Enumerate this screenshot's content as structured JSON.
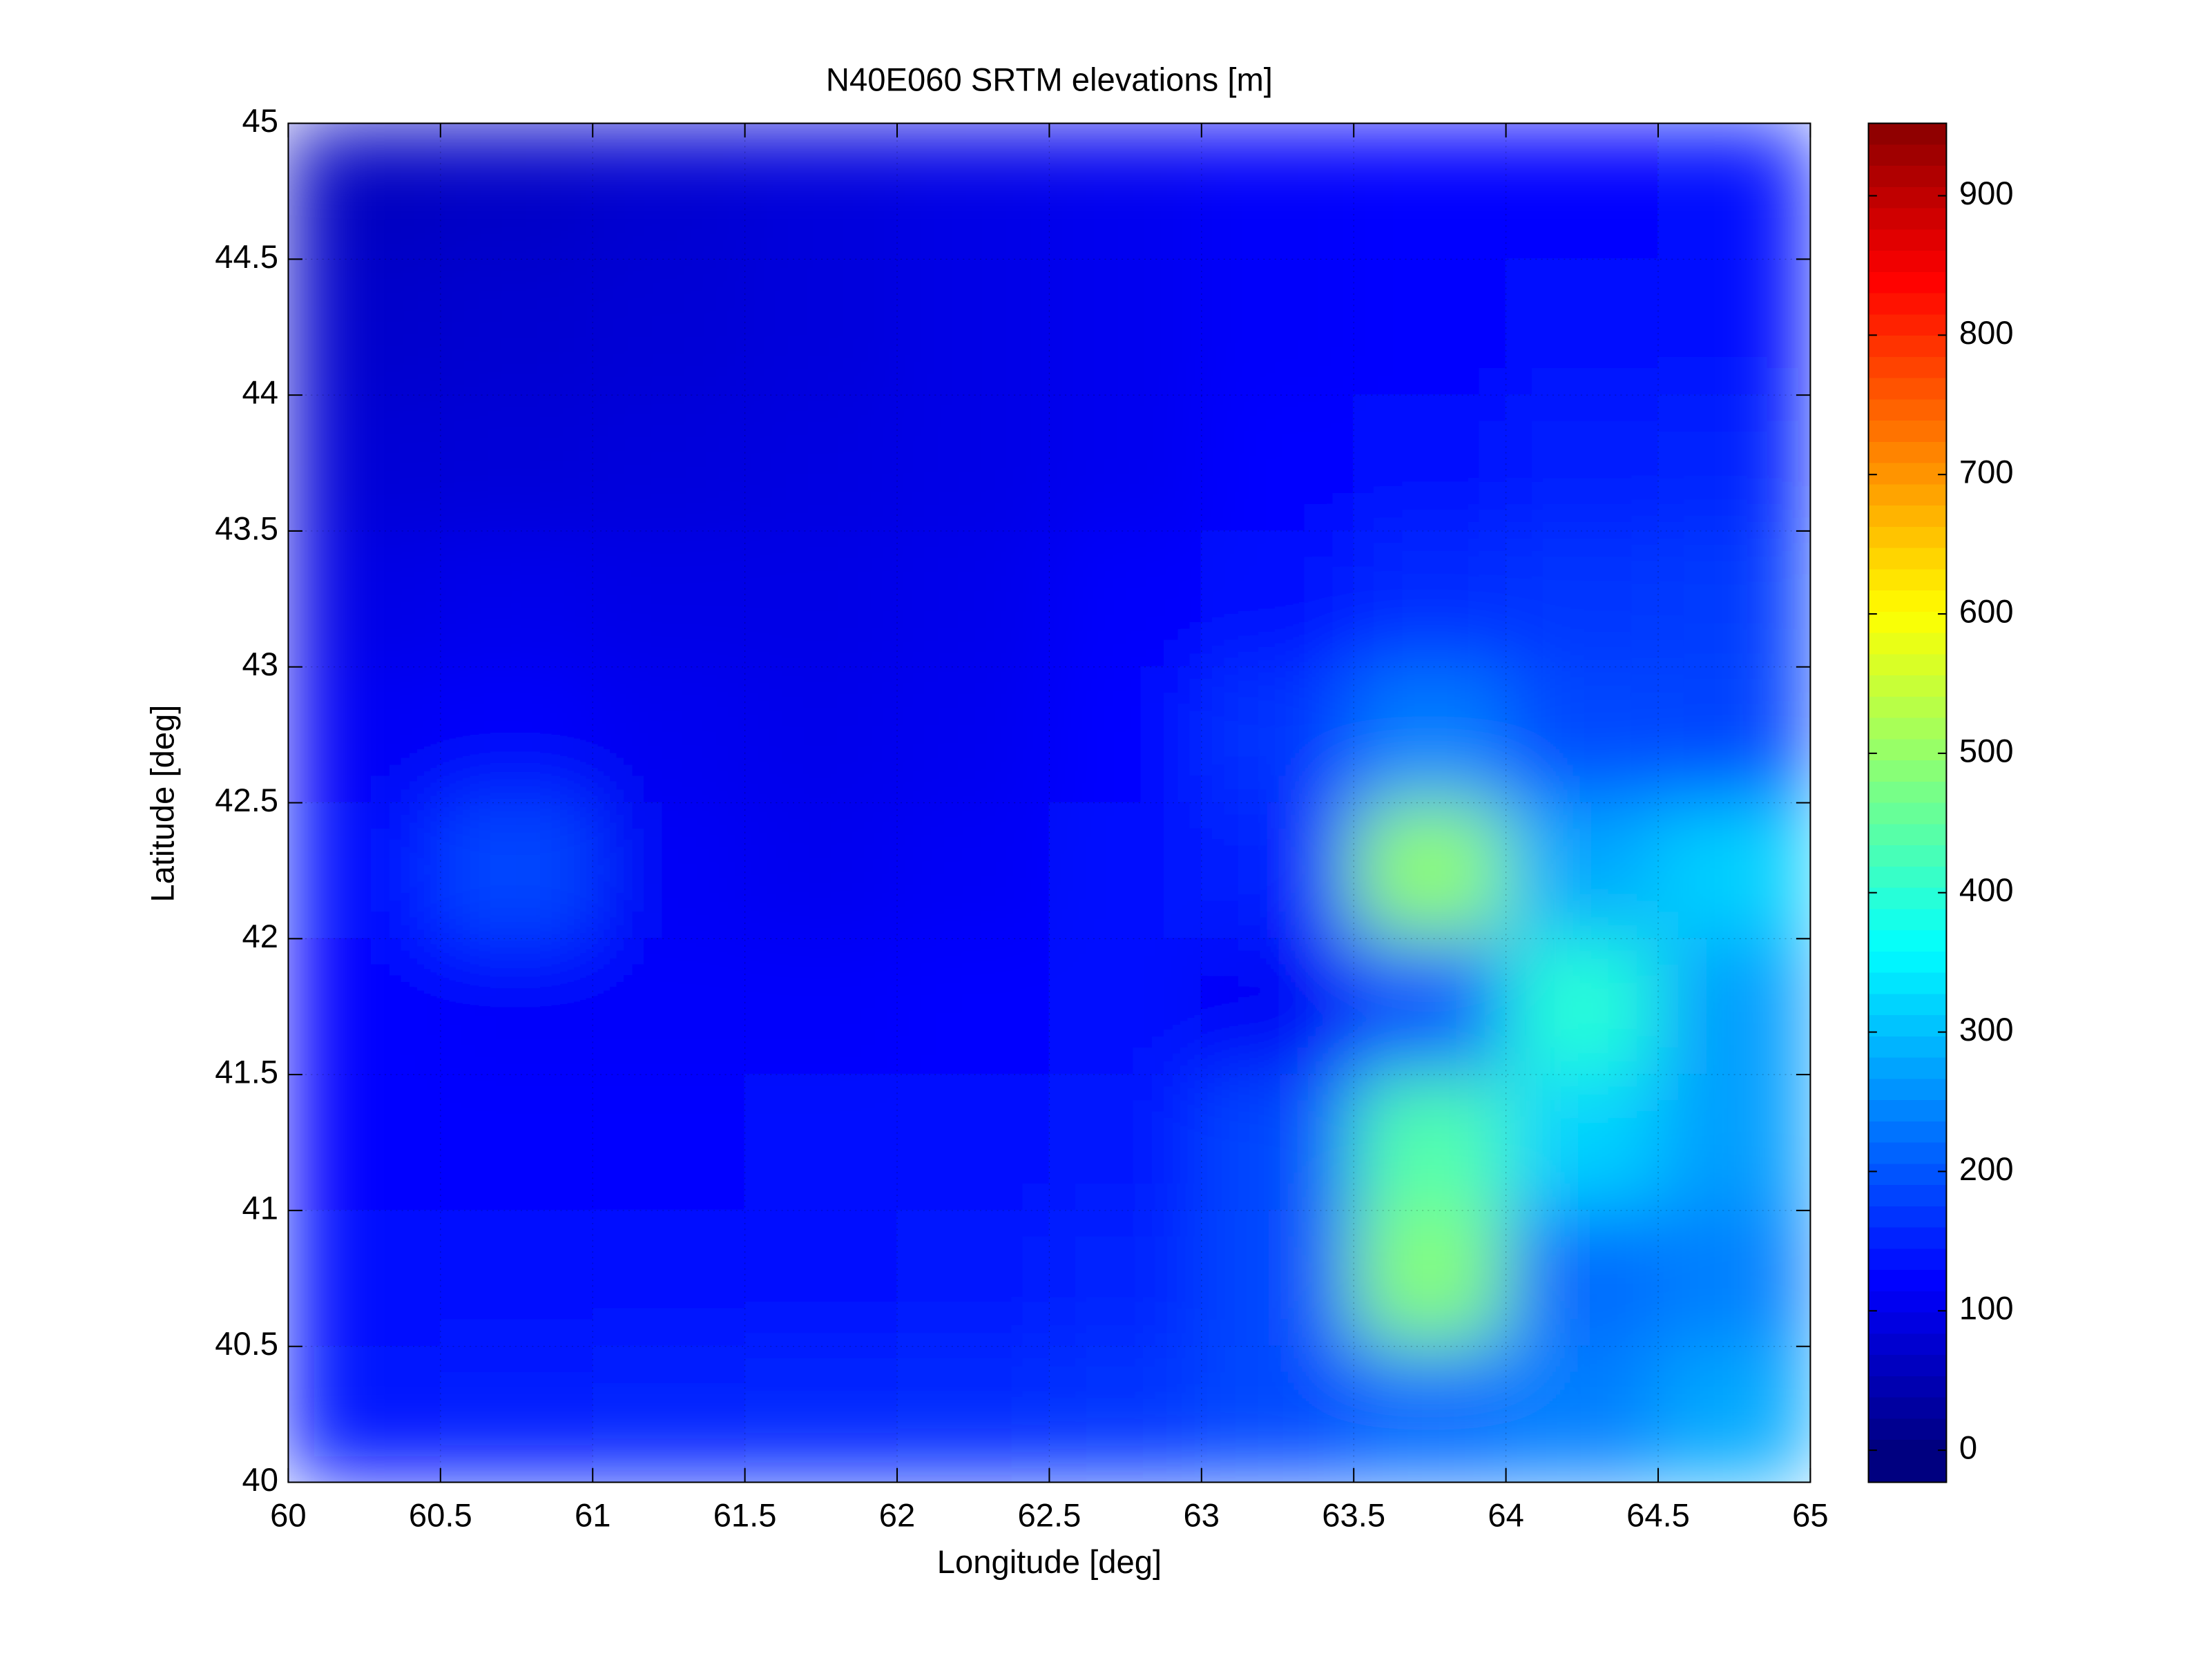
{
  "chart_data": {
    "type": "heatmap",
    "title": "N40E060 SRTM elevations [m]",
    "x_label": "Longitude [deg]",
    "y_label": "Latitude [deg]",
    "colormap": "jet",
    "grid": true,
    "xlim": [
      60,
      65
    ],
    "ylim": [
      40,
      45
    ],
    "xticks": [
      60,
      60.5,
      61,
      61.5,
      62,
      62.5,
      63,
      63.5,
      64,
      64.5,
      65
    ],
    "yticks": [
      40,
      40.5,
      41,
      41.5,
      42,
      42.5,
      43,
      43.5,
      44,
      44.5,
      45
    ],
    "clim": [
      -23,
      952
    ],
    "cticks": [
      0,
      100,
      200,
      300,
      400,
      500,
      600,
      700,
      800,
      900
    ],
    "x": [
      60.25,
      60.75,
      61.25,
      61.75,
      62.25,
      62.75,
      63.25,
      63.75,
      64.25,
      64.75
    ],
    "y": [
      44.75,
      44.25,
      43.75,
      43.25,
      42.75,
      42.25,
      41.75,
      41.25,
      40.75,
      40.25
    ],
    "z": [
      [
        40,
        45,
        55,
        65,
        75,
        85,
        95,
        100,
        105,
        110
      ],
      [
        50,
        55,
        60,
        65,
        75,
        85,
        95,
        105,
        110,
        115
      ],
      [
        60,
        62,
        65,
        70,
        75,
        85,
        100,
        115,
        125,
        130
      ],
      [
        75,
        80,
        75,
        75,
        80,
        95,
        115,
        140,
        150,
        155
      ],
      [
        90,
        95,
        85,
        80,
        85,
        100,
        150,
        220,
        170,
        165
      ],
      [
        110,
        170,
        90,
        85,
        90,
        110,
        130,
        480,
        260,
        300
      ],
      [
        100,
        95,
        95,
        95,
        100,
        110,
        90,
        180,
        380,
        250
      ],
      [
        100,
        100,
        105,
        110,
        110,
        120,
        170,
        420,
        300,
        250
      ],
      [
        110,
        110,
        115,
        115,
        120,
        130,
        170,
        470,
        200,
        220
      ],
      [
        120,
        125,
        130,
        135,
        140,
        150,
        170,
        200,
        220,
        260
      ]
    ]
  }
}
